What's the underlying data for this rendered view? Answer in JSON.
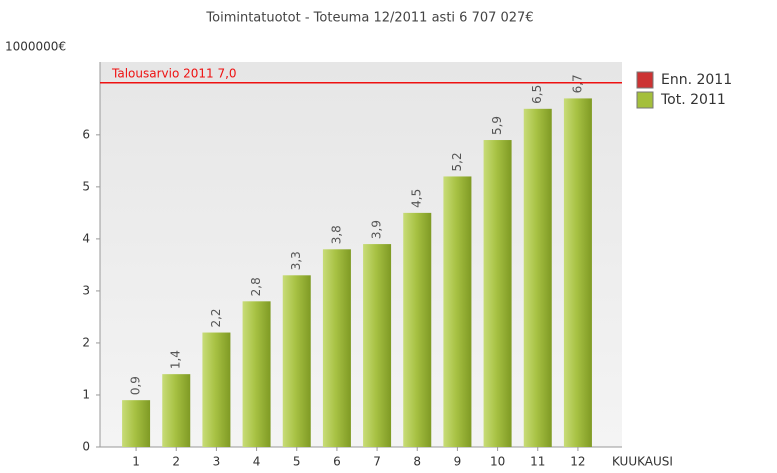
{
  "chart_data": {
    "type": "bar",
    "title": "Toimintatuotot - Toteuma  12/2011 asti 6 707 027€",
    "y_label": "1000000€",
    "x_label": "KUUKAUSI",
    "categories": [
      "1",
      "2",
      "3",
      "4",
      "5",
      "6",
      "7",
      "8",
      "9",
      "10",
      "11",
      "12"
    ],
    "series": [
      {
        "name": "Enn. 2011",
        "color": "#cc3333",
        "values": [
          null,
          null,
          null,
          null,
          null,
          null,
          null,
          null,
          null,
          null,
          null,
          null
        ]
      },
      {
        "name": "Tot. 2011",
        "color": "#a4bf3c",
        "values": [
          0.9,
          1.4,
          2.2,
          2.8,
          3.3,
          3.8,
          3.9,
          4.5,
          5.2,
          5.9,
          6.5,
          6.7
        ],
        "value_labels": [
          "0,9",
          "1,4",
          "2,2",
          "2,8",
          "3,3",
          "3,8",
          "3,9",
          "4,5",
          "5,2",
          "5,9",
          "6,5",
          "6,7"
        ]
      }
    ],
    "reference_line": {
      "label": "Talousarvio 2011 7,0",
      "value": 7.0,
      "color": "#ee1111"
    },
    "ylim": [
      0,
      7.4
    ],
    "yticks": [
      0,
      1,
      2,
      3,
      4,
      5,
      6
    ],
    "legend": "top-right"
  }
}
